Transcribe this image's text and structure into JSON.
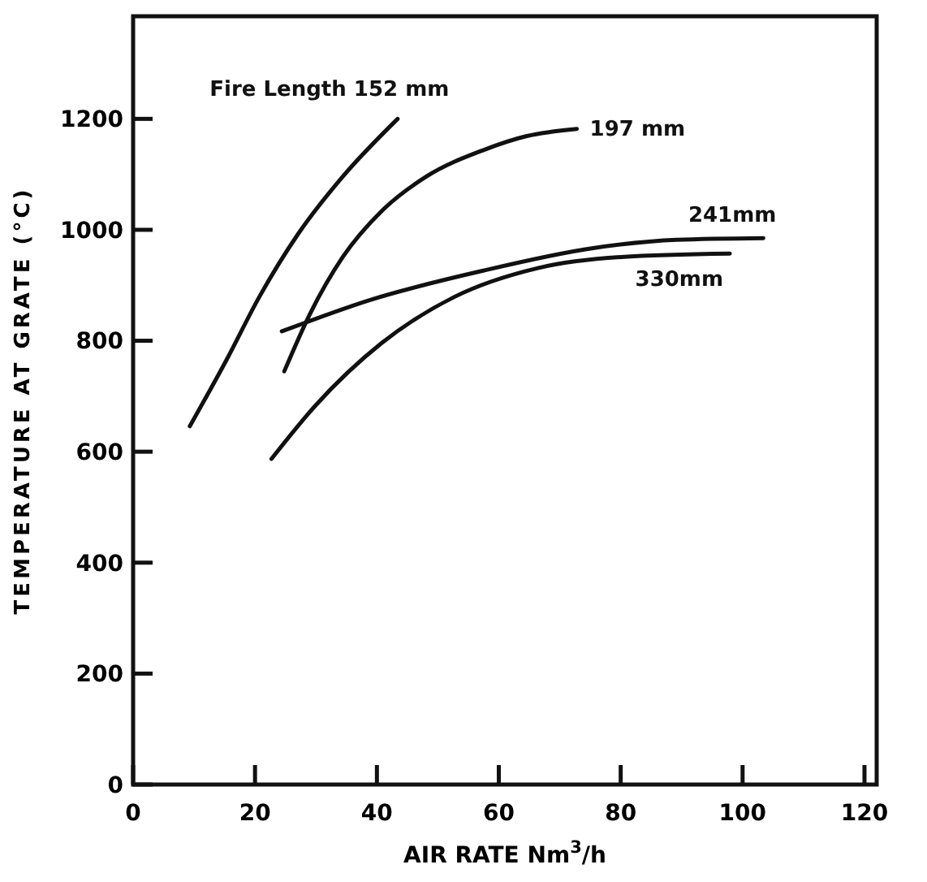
{
  "chart_data": {
    "type": "line",
    "xlabel": "AIR RATE Nm$^{3}$/h",
    "ylabel": "TEMPERATURE AT GRATE (°C)",
    "xlim": [
      0,
      122
    ],
    "ylim": [
      0,
      1385
    ],
    "xticks": [
      0,
      20,
      40,
      60,
      80,
      100,
      120
    ],
    "yticks": [
      0,
      200,
      400,
      600,
      800,
      1000,
      1200
    ],
    "grid": false,
    "marker": "none",
    "line_style": "solid",
    "series": [
      {
        "name": "Fire Length 152 mm",
        "color": "#111111",
        "x": [
          9.3,
          15.3,
          20.7,
          27.1,
          34.4,
          43.4
        ],
        "values": [
          646,
          765,
          879,
          993,
          1096,
          1200
        ]
      },
      {
        "name": "197 mm",
        "color": "#111111",
        "x": [
          24.8,
          29,
          34.4,
          40.8,
          48.1,
          57.3,
          64.6,
          72.8
        ],
        "values": [
          745,
          848,
          951,
          1034,
          1096,
          1143,
          1169,
          1182
        ]
      },
      {
        "name": "241mm",
        "color": "#111111",
        "x": [
          24.4,
          39,
          57.3,
          75.5,
          89.2,
          103.4
        ],
        "values": [
          817,
          874,
          926,
          967,
          982,
          985
        ]
      },
      {
        "name": "330mm",
        "color": "#111111",
        "x": [
          22.7,
          29.9,
          40.8,
          52.7,
          66.4,
          80.1,
          97.9
        ],
        "values": [
          587,
          683,
          796,
          879,
          931,
          951,
          957
        ]
      }
    ]
  }
}
